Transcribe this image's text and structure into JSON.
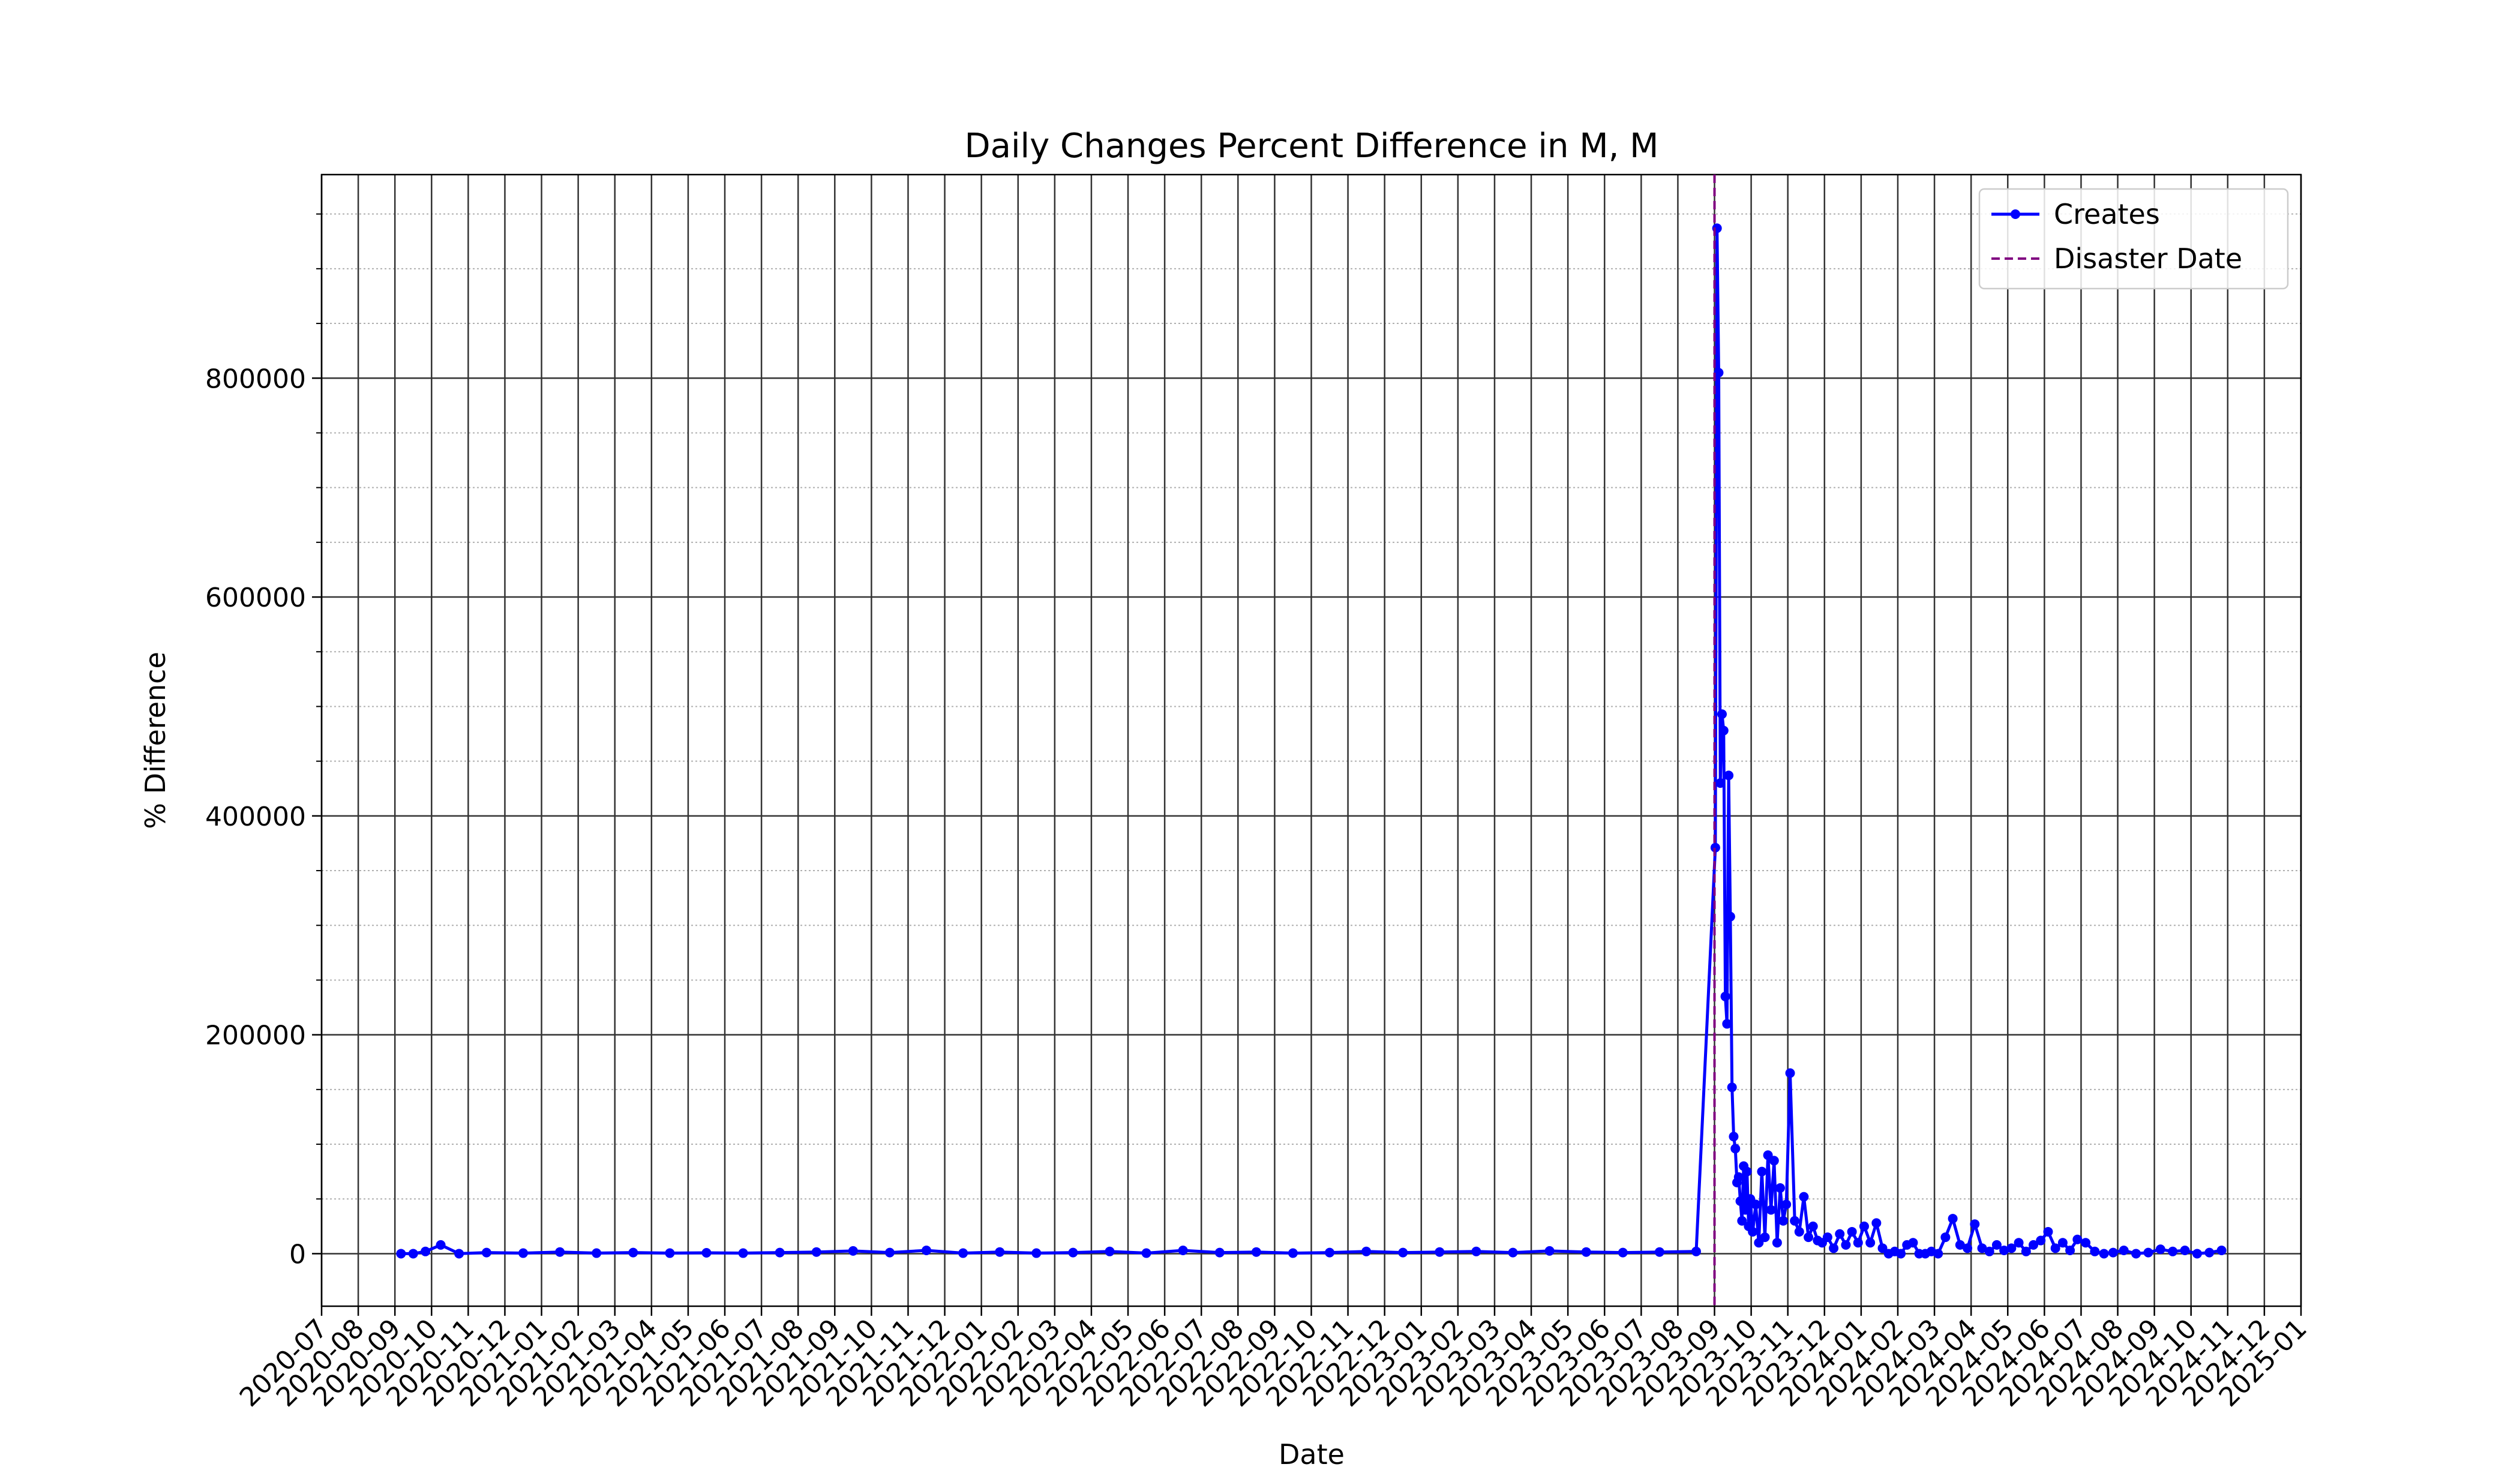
{
  "chart_data": {
    "type": "line",
    "title": "Daily Changes Percent Difference in M, M",
    "xlabel": "Date",
    "ylabel": "% Difference",
    "x": [
      "2020-09",
      "2020-09",
      "2020-09",
      "2020-10",
      "2020-10",
      "2020-11",
      "2020-12",
      "2021-01",
      "2021-02",
      "2021-03",
      "2021-04",
      "2021-05",
      "2021-06",
      "2021-07",
      "2021-08",
      "2021-09",
      "2021-10",
      "2021-11",
      "2021-12",
      "2022-01",
      "2022-02",
      "2022-03",
      "2022-04",
      "2022-05",
      "2022-06",
      "2022-07",
      "2022-08",
      "2022-09",
      "2022-10",
      "2022-11",
      "2022-12",
      "2023-01",
      "2023-02",
      "2023-03",
      "2023-04",
      "2023-05",
      "2023-06",
      "2023-07",
      "2023-08",
      "2023-09",
      "2023-09",
      "2023-09",
      "2023-09",
      "2023-09",
      "2023-09",
      "2023-09",
      "2023-09",
      "2023-09",
      "2023-09",
      "2023-09",
      "2023-09",
      "2023-09",
      "2023-09",
      "2023-09",
      "2023-09",
      "2023-09",
      "2023-09",
      "2023-09",
      "2023-09",
      "2023-09",
      "2023-09",
      "2023-10",
      "2023-10",
      "2023-10",
      "2023-10",
      "2023-10",
      "2023-10",
      "2023-10",
      "2023-10",
      "2023-10",
      "2023-10",
      "2023-10",
      "2023-10",
      "2023-11",
      "2023-11",
      "2023-11",
      "2023-11",
      "2023-11",
      "2023-11",
      "2023-11",
      "2023-11",
      "2023-12",
      "2023-12",
      "2023-12",
      "2023-12",
      "2023-12",
      "2023-12",
      "2024-01",
      "2024-01",
      "2024-01",
      "2024-01",
      "2024-01",
      "2024-01",
      "2024-02",
      "2024-02",
      "2024-02",
      "2024-02",
      "2024-02",
      "2024-02",
      "2024-03",
      "2024-03",
      "2024-03",
      "2024-03",
      "2024-03",
      "2024-04",
      "2024-04",
      "2024-04",
      "2024-04",
      "2024-04",
      "2024-05",
      "2024-05",
      "2024-05",
      "2024-05",
      "2024-05",
      "2024-06",
      "2024-06",
      "2024-06",
      "2024-06",
      "2024-06",
      "2024-07",
      "2024-07",
      "2024-07",
      "2024-07",
      "2024-08",
      "2024-08",
      "2024-08",
      "2024-09",
      "2024-09",
      "2024-09",
      "2024-10",
      "2024-10",
      "2024-10"
    ],
    "series": [
      {
        "name": "Creates",
        "color": "#0000ff",
        "values": [
          0,
          0,
          2000,
          8000,
          0,
          1000,
          500,
          1500,
          500,
          1000,
          500,
          800,
          500,
          1000,
          1500,
          2500,
          1000,
          3000,
          500,
          1500,
          500,
          1000,
          2000,
          500,
          3000,
          1000,
          1500,
          500,
          1000,
          2000,
          1000,
          1500,
          2000,
          1000,
          2500,
          1500,
          1000,
          1500,
          2000,
          371000,
          937000,
          805000,
          430000,
          493000,
          478000,
          235000,
          210000,
          437000,
          308000,
          152000,
          107000,
          96000,
          65000,
          70000,
          48000,
          30000,
          80000,
          40000,
          75000,
          25000,
          50000,
          20000,
          45000,
          10000,
          75000,
          15000,
          90000,
          40000,
          85000,
          10000,
          60000,
          30000,
          45000,
          165000,
          30000,
          20000,
          52000,
          15000,
          25000,
          12000,
          10000,
          15000,
          5000,
          18000,
          8000,
          20000,
          10000,
          25000,
          10000,
          28000,
          5000,
          0,
          2000,
          0,
          8000,
          10000,
          0,
          0,
          2000,
          0,
          15000,
          32000,
          8000,
          5000,
          27000,
          5000,
          2000,
          8000,
          3000,
          5000,
          10000,
          2000,
          8000,
          12000,
          20000,
          5000,
          10000,
          3000,
          13000,
          10000,
          2000,
          0,
          1000,
          3000,
          0,
          1000,
          4000,
          2000,
          3000,
          0,
          1000,
          3000
        ]
      }
    ],
    "vlines": [
      {
        "x": "2023-09",
        "label": "Disaster Date",
        "color": "#800080"
      }
    ],
    "xlim": [
      "2020-07",
      "2025-01"
    ],
    "xticks": [
      "2020-07",
      "2020-08",
      "2020-09",
      "2020-10",
      "2020-11",
      "2020-12",
      "2021-01",
      "2021-02",
      "2021-03",
      "2021-04",
      "2021-05",
      "2021-06",
      "2021-07",
      "2021-08",
      "2021-09",
      "2021-10",
      "2021-11",
      "2021-12",
      "2022-01",
      "2022-02",
      "2022-03",
      "2022-04",
      "2022-05",
      "2022-06",
      "2022-07",
      "2022-08",
      "2022-09",
      "2022-10",
      "2022-11",
      "2022-12",
      "2023-01",
      "2023-02",
      "2023-03",
      "2023-04",
      "2023-05",
      "2023-06",
      "2023-07",
      "2023-08",
      "2023-09",
      "2023-10",
      "2023-11",
      "2023-12",
      "2024-01",
      "2024-02",
      "2024-03",
      "2024-04",
      "2024-05",
      "2024-06",
      "2024-07",
      "2024-08",
      "2024-09",
      "2024-10",
      "2024-11",
      "2024-12",
      "2025-01"
    ],
    "ylim": [
      -48000,
      986000
    ],
    "yticks": [
      0,
      200000,
      400000,
      600000,
      800000
    ],
    "yminorticks": [
      50000,
      100000,
      150000,
      250000,
      300000,
      350000,
      450000,
      500000,
      550000,
      650000,
      700000,
      750000,
      850000,
      900000,
      950000
    ],
    "grid": true,
    "legend": "upper right"
  }
}
